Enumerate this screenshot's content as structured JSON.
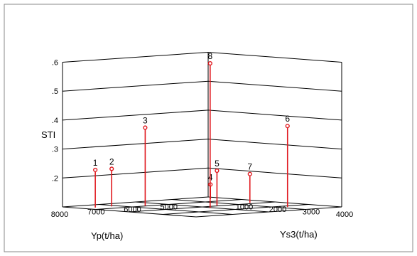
{
  "chart_data": {
    "type": "scatter",
    "title": "",
    "xlabel": "Yp(t/ha)",
    "ylabel": "Ys3(t/ha)",
    "zlabel": "STI",
    "xlim": [
      4000,
      8000
    ],
    "ylim": [
      0,
      4000
    ],
    "zlim": [
      0.1,
      0.6
    ],
    "x_ticks": [
      "8000",
      "7000",
      "6000",
      "5000"
    ],
    "y_ticks": [
      "1000",
      "2000",
      "3000",
      "4000"
    ],
    "z_ticks": [
      ".2",
      ".3",
      ".4",
      ".5",
      ".6"
    ],
    "grid": true,
    "colors": {
      "stem": "#e0191f",
      "marker": "#e0191f",
      "grid": "#000000"
    },
    "points": [
      {
        "label": "1",
        "x": 7650,
        "y": 600,
        "z": 0.23
      },
      {
        "label": "2",
        "x": 7200,
        "y": 600,
        "z": 0.23
      },
      {
        "label": "3",
        "x": 6600,
        "y": 950,
        "z": 0.37
      },
      {
        "label": "4",
        "x": 4350,
        "y": 450,
        "z": 0.15
      },
      {
        "label": "5",
        "x": 5500,
        "y": 1900,
        "z": 0.22
      },
      {
        "label": "6",
        "x": 4800,
        "y": 3250,
        "z": 0.38
      },
      {
        "label": "7",
        "x": 4550,
        "y": 1850,
        "z": 0.2
      },
      {
        "label": "8",
        "x": 6100,
        "y": 2350,
        "z": 0.6
      }
    ]
  }
}
